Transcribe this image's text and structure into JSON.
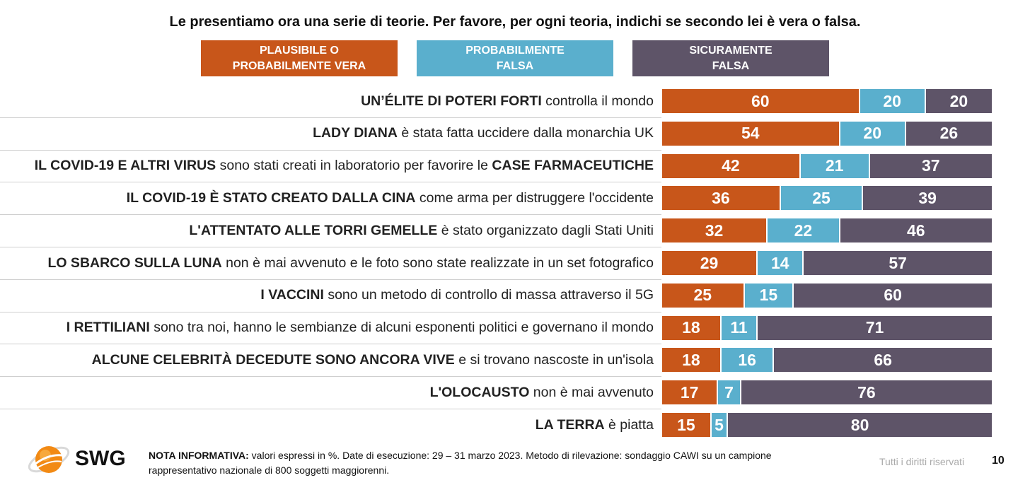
{
  "question": "Le presentiamo ora una serie di teorie. Per favore, per ogni teoria, indichi se secondo lei è vera o falsa.",
  "legend": [
    {
      "line1": "PLAUSIBILE O",
      "line2": "PROBABILMENTE VERA",
      "color": "#C8561A"
    },
    {
      "line1": "PROBABILMENTE",
      "line2": "FALSA",
      "color": "#5AAFCD"
    },
    {
      "line1": "SICURAMENTE",
      "line2": "FALSA",
      "color": "#5E5468"
    }
  ],
  "chart_data": {
    "type": "bar",
    "stacked": true,
    "orientation": "horizontal",
    "normalized_percent": true,
    "series": [
      {
        "name": "PLAUSIBILE O PROBABILMENTE VERA",
        "color": "#C8561A",
        "values": [
          60,
          54,
          42,
          36,
          32,
          29,
          25,
          18,
          18,
          17,
          15
        ]
      },
      {
        "name": "PROBABILMENTE FALSA",
        "color": "#5AAFCD",
        "values": [
          20,
          20,
          21,
          25,
          22,
          14,
          15,
          11,
          16,
          7,
          5
        ]
      },
      {
        "name": "SICURAMENTE FALSA",
        "color": "#5E5468",
        "values": [
          20,
          26,
          37,
          39,
          46,
          57,
          60,
          71,
          66,
          76,
          80
        ]
      }
    ],
    "categories": [
      {
        "bold1": "UN’ÉLITE DI POTERI FORTI",
        "normal1": " controlla il mondo",
        "bold2": "",
        "normal2": ""
      },
      {
        "bold1": "LADY DIANA",
        "normal1": " è stata fatta uccidere dalla monarchia UK",
        "bold2": "",
        "normal2": ""
      },
      {
        "bold1": "IL COVID-19 E ALTRI VIRUS",
        "normal1": " sono stati creati in laboratorio per favorire le ",
        "bold2": "CASE FARMACEUTICHE",
        "normal2": ""
      },
      {
        "bold1": "IL COVID-19 È STATO CREATO DALLA CINA",
        "normal1": " come arma per distruggere l'occidente",
        "bold2": "",
        "normal2": ""
      },
      {
        "bold1": "L'ATTENTATO ALLE TORRI GEMELLE",
        "normal1": " è stato organizzato dagli Stati Uniti",
        "bold2": "",
        "normal2": ""
      },
      {
        "bold1": "LO SBARCO SULLA LUNA",
        "normal1": " non è mai avvenuto e le foto sono state realizzate in un set fotografico",
        "bold2": "",
        "normal2": ""
      },
      {
        "bold1": "I VACCINI",
        "normal1": " sono un metodo di controllo di massa attraverso il 5G",
        "bold2": "",
        "normal2": ""
      },
      {
        "bold1": "I RETTILIANI",
        "normal1": " sono tra noi, hanno le sembianze di alcuni esponenti politici e governano il mondo",
        "bold2": "",
        "normal2": ""
      },
      {
        "bold1": "ALCUNE CELEBRITÀ DECEDUTE SONO ANCORA VIVE",
        "normal1": " e si trovano nascoste in un'isola",
        "bold2": "",
        "normal2": ""
      },
      {
        "bold1": "L'OLOCAUSTO",
        "normal1": " non è mai avvenuto",
        "bold2": "",
        "normal2": ""
      },
      {
        "bold1": "LA TERRA",
        "normal1": " è piatta",
        "bold2": "",
        "normal2": ""
      }
    ]
  },
  "footer": {
    "note_label": "NOTA INFORMATIVA:",
    "note_text": " valori espressi in %. Date di esecuzione: 29 – 31 marzo 2023. Metodo di rilevazione: sondaggio CAWI su un campione rappresentativo nazionale di 800 soggetti maggiorenni.",
    "rights": "Tutti i diritti riservati",
    "page": "10",
    "logo_text": "SWG"
  }
}
